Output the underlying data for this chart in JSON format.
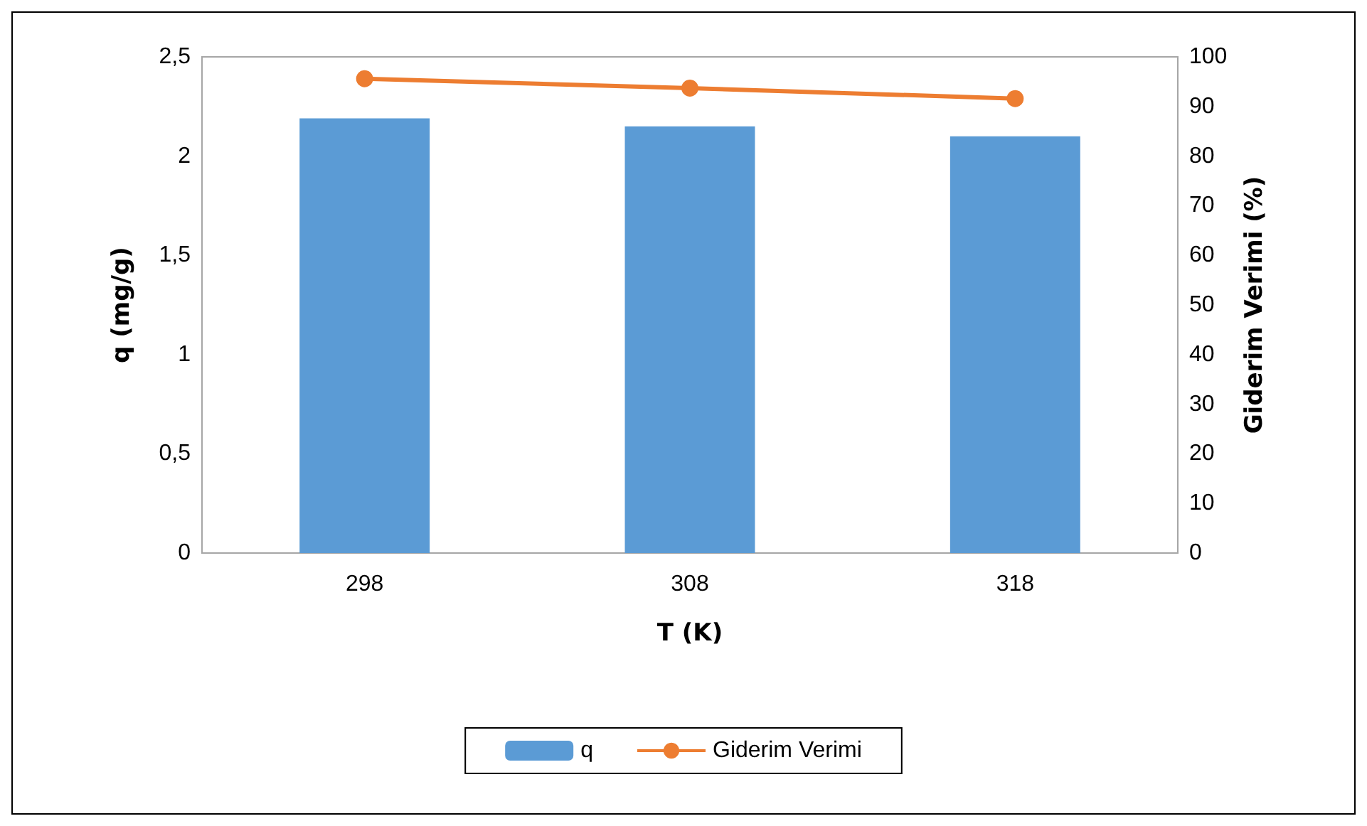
{
  "chart_data": {
    "type": "bar",
    "xlabel": "T (K)",
    "ylabel": "q (mg/g)",
    "y2label": "Giderim Verimi (%)",
    "categories": [
      "298",
      "308",
      "318"
    ],
    "series": [
      {
        "name": "q",
        "color": "#5b9bd5",
        "values": [
          2.19,
          2.15,
          2.1
        ]
      },
      {
        "name": "Giderim Verimi",
        "type": "line",
        "axis": "y2",
        "color": "#ed7d31",
        "values": [
          95.6,
          93.7,
          91.6
        ]
      }
    ],
    "ylim": [
      0,
      2.5
    ],
    "yticks": [
      0,
      {
        "value": 0.5,
        "label": "0,5"
      },
      1,
      {
        "value": 1.5,
        "label": "1,5"
      },
      2,
      {
        "value": 2.5,
        "label": "2,5"
      }
    ],
    "y2lim": [
      0,
      100
    ],
    "y2ticks": [
      0,
      10,
      20,
      30,
      40,
      50,
      60,
      70,
      80,
      90,
      100
    ],
    "grid": false,
    "legend": "bottom",
    "marker": "circle",
    "line_style": "solid"
  }
}
